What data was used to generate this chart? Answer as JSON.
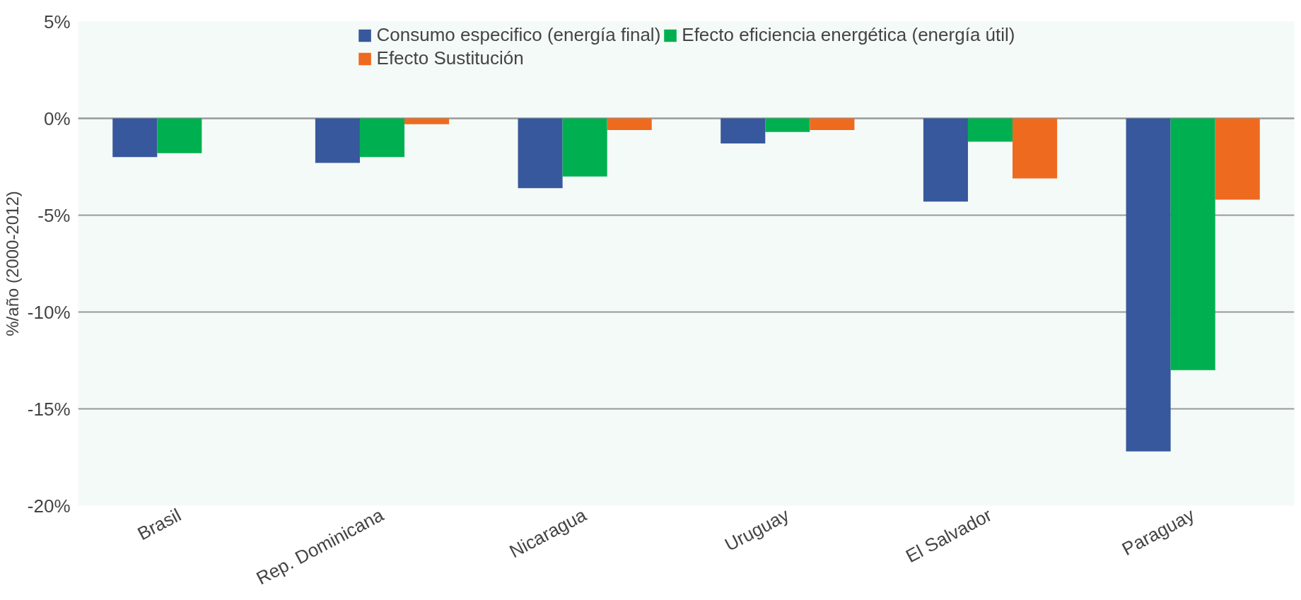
{
  "chart_data": {
    "type": "bar",
    "ylabel": "%/año (2000-2012)",
    "categories": [
      "Brasil",
      "Rep. Dominicana",
      "Nicaragua",
      "Uruguay",
      "El Salvador",
      "Paraguay"
    ],
    "series": [
      {
        "name": "Consumo especifico (energía final)",
        "color": "#37589c",
        "values": [
          -2.0,
          -2.3,
          -3.6,
          -1.3,
          -4.3,
          -17.2
        ]
      },
      {
        "name": "Efecto eficiencia energética (energía útil)",
        "color": "#00b050",
        "values": [
          -1.8,
          -2.0,
          -3.0,
          -0.7,
          -1.2,
          -13.0
        ]
      },
      {
        "name": "Efecto Sustitución",
        "color": "#ee6a1f",
        "values": [
          null,
          -0.3,
          -0.6,
          -0.6,
          -3.1,
          -4.2
        ]
      }
    ],
    "ylim": [
      -20,
      5
    ],
    "yticks": [
      {
        "value": 5,
        "label": "5%"
      },
      {
        "value": 0,
        "label": "0%"
      },
      {
        "value": -5,
        "label": "-5%"
      },
      {
        "value": -10,
        "label": "-10%"
      },
      {
        "value": -15,
        "label": "-15%"
      },
      {
        "value": -20,
        "label": "-20%"
      }
    ],
    "grid": "y",
    "legend": "top"
  }
}
